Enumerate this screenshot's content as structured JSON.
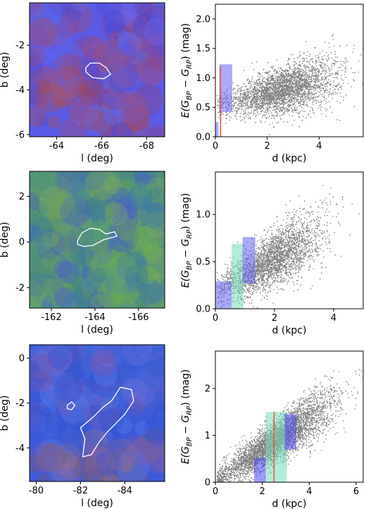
{
  "chart_data": [
    {
      "type": "heatmap",
      "xlabel": "l (deg)",
      "ylabel": "b (deg)",
      "x_ticks": [
        "-64",
        "-66",
        "-68"
      ],
      "x_tick_values": [
        -64,
        -66,
        -68
      ],
      "y_ticks": [
        "-2",
        "-4",
        "-6"
      ],
      "y_tick_values": [
        -2,
        -4,
        -6
      ],
      "xlim": [
        -62.8,
        -68.8
      ],
      "ylim": [
        -6.1,
        -0.1
      ],
      "dominant_color": "#5a5ae6",
      "contour": [
        [
          -65.3,
          -3.0
        ],
        [
          -65.5,
          -2.8
        ],
        [
          -65.9,
          -2.8
        ],
        [
          -66.2,
          -3.0
        ],
        [
          -66.4,
          -3.3
        ],
        [
          -66.1,
          -3.5
        ],
        [
          -65.6,
          -3.45
        ],
        [
          -65.3,
          -3.2
        ]
      ]
    },
    {
      "type": "scatter",
      "xlabel": "d (kpc)",
      "ylabel": "E(G_BP − G_RP) (mag)",
      "ylabel_parts": {
        "pre": "E(G",
        "sub1": "BP",
        "mid": " − G",
        "sub2": "RP",
        "post": ") (mag)"
      },
      "x_ticks": [
        "0",
        "2",
        "4"
      ],
      "x_tick_values": [
        0,
        2,
        4
      ],
      "y_ticks": [
        "0.0",
        "0.5",
        "1.0",
        "1.5",
        "2.0"
      ],
      "y_tick_values": [
        0,
        0.5,
        1.0,
        1.5,
        2.0
      ],
      "xlim": [
        0,
        5.7
      ],
      "ylim": [
        0,
        2.25
      ],
      "point_color": "#7f7f7f",
      "cloud": {
        "n": 3200,
        "d_mean": 2.6,
        "d_sd": 1.05,
        "e_base": 0.52,
        "e_slope": 0.11,
        "e_sd": 0.2
      },
      "boxes": [
        {
          "x0": 0.0,
          "x1": 0.12,
          "y0": 0.0,
          "y1": 0.25,
          "color": "#6666ee"
        },
        {
          "x0": 0.15,
          "x1": 0.65,
          "y0": 0.42,
          "y1": 1.23,
          "color": "#6666ee"
        }
      ],
      "vline": {
        "x": 0.2,
        "y0": 0.0,
        "y1": 1.2,
        "color": "#e8553a"
      }
    },
    {
      "type": "heatmap",
      "xlabel": "l (deg)",
      "ylabel": "b (deg)",
      "x_ticks": [
        "-162",
        "-164",
        "-166"
      ],
      "x_tick_values": [
        -162,
        -164,
        -166
      ],
      "y_ticks": [
        "2",
        "0",
        "-2"
      ],
      "y_tick_values": [
        2,
        0,
        -2
      ],
      "xlim": [
        -161,
        -167.2
      ],
      "ylim": [
        -2.9,
        3.1
      ],
      "dominant_color": "#4f8f7a",
      "contour": [
        [
          -163.2,
          0.05
        ],
        [
          -163.4,
          0.4
        ],
        [
          -163.8,
          0.6
        ],
        [
          -164.2,
          0.55
        ],
        [
          -164.5,
          0.35
        ],
        [
          -164.9,
          0.45
        ],
        [
          -165.0,
          0.25
        ],
        [
          -164.4,
          0.1
        ],
        [
          -163.9,
          -0.15
        ],
        [
          -163.5,
          -0.2
        ],
        [
          -163.2,
          -0.1
        ]
      ]
    },
    {
      "type": "scatter",
      "xlabel": "d (kpc)",
      "ylabel": "E(G_BP − G_RP) (mag)",
      "ylabel_parts": {
        "pre": "E(G",
        "sub1": "BP",
        "mid": " − G",
        "sub2": "RP",
        "post": ") (mag)"
      },
      "x_ticks": [
        "0",
        "2",
        "4"
      ],
      "x_tick_values": [
        0,
        2,
        4
      ],
      "y_ticks": [
        "0.0",
        "0.5",
        "1.0"
      ],
      "y_tick_values": [
        0,
        0.5,
        1.0
      ],
      "xlim": [
        0,
        5.0
      ],
      "ylim": [
        0,
        1.45
      ],
      "point_color": "#7f7f7f",
      "cloud": {
        "n": 3000,
        "d_mean": 1.9,
        "d_sd": 0.85,
        "e_base": 0.18,
        "e_slope": 0.18,
        "e_sd": 0.16
      },
      "boxes": [
        {
          "x0": 0.0,
          "x1": 0.55,
          "y0": 0.0,
          "y1": 0.29,
          "color": "#6666ee"
        },
        {
          "x0": 0.55,
          "x1": 0.95,
          "y0": 0.0,
          "y1": 0.69,
          "color": "#77ddbb"
        },
        {
          "x0": 0.92,
          "x1": 1.35,
          "y0": 0.27,
          "y1": 0.76,
          "color": "#6666ee"
        }
      ],
      "vline": null
    },
    {
      "type": "heatmap",
      "xlabel": "l (deg)",
      "ylabel": "b (deg)",
      "x_ticks": [
        "-80",
        "-82",
        "-84"
      ],
      "x_tick_values": [
        -80,
        -82,
        -84
      ],
      "y_ticks": [
        "0",
        "-2",
        "-4"
      ],
      "y_tick_values": [
        0,
        -2,
        -4
      ],
      "xlim": [
        -79.7,
        -85.8
      ],
      "ylim": [
        -5.5,
        0.6
      ],
      "dominant_color": "#3c5ad8",
      "contour": [
        [
          -82.1,
          -4.4
        ],
        [
          -82.2,
          -3.6
        ],
        [
          -82.0,
          -3.1
        ],
        [
          -82.6,
          -2.6
        ],
        [
          -83.0,
          -2.2
        ],
        [
          -83.4,
          -1.9
        ],
        [
          -83.8,
          -1.3
        ],
        [
          -84.3,
          -1.4
        ],
        [
          -84.4,
          -1.9
        ],
        [
          -84.0,
          -2.5
        ],
        [
          -83.6,
          -2.9
        ],
        [
          -83.2,
          -3.3
        ],
        [
          -82.8,
          -3.8
        ],
        [
          -82.5,
          -4.3
        ]
      ],
      "contour_small": [
        [
          -81.4,
          -2.1
        ],
        [
          -81.6,
          -1.95
        ],
        [
          -81.75,
          -2.1
        ],
        [
          -81.6,
          -2.3
        ],
        [
          -81.4,
          -2.25
        ]
      ]
    },
    {
      "type": "scatter",
      "xlabel": "d (kpc)",
      "ylabel": "E(G_BP − G_RP) (mag)",
      "ylabel_parts": {
        "pre": "E(G",
        "sub1": "BP",
        "mid": " − G",
        "sub2": "RP",
        "post": ") (mag)"
      },
      "x_ticks": [
        "0",
        "2",
        "4",
        "6"
      ],
      "x_tick_values": [
        0,
        2,
        4,
        6
      ],
      "y_ticks": [
        "0",
        "1",
        "2"
      ],
      "y_tick_values": [
        0,
        1,
        2
      ],
      "xlim": [
        0,
        6.3
      ],
      "ylim": [
        0,
        2.8
      ],
      "point_color": "#7f7f7f",
      "cloud": {
        "n": 4200,
        "d_mean": 2.6,
        "d_sd": 1.2,
        "e_base": 0.05,
        "e_slope": 0.33,
        "e_sd": 0.22
      },
      "boxes": [
        {
          "x0": 1.65,
          "x1": 2.15,
          "y0": 0.0,
          "y1": 0.52,
          "color": "#4a4af0"
        },
        {
          "x0": 2.15,
          "x1": 3.05,
          "y0": 0.0,
          "y1": 1.5,
          "color": "#77ddbb"
        },
        {
          "x0": 2.95,
          "x1": 3.45,
          "y0": 0.7,
          "y1": 1.45,
          "color": "#4a4af0"
        }
      ],
      "vline": {
        "x": 2.5,
        "y0": 0.0,
        "y1": 1.5,
        "color": "#e8553a"
      }
    }
  ]
}
